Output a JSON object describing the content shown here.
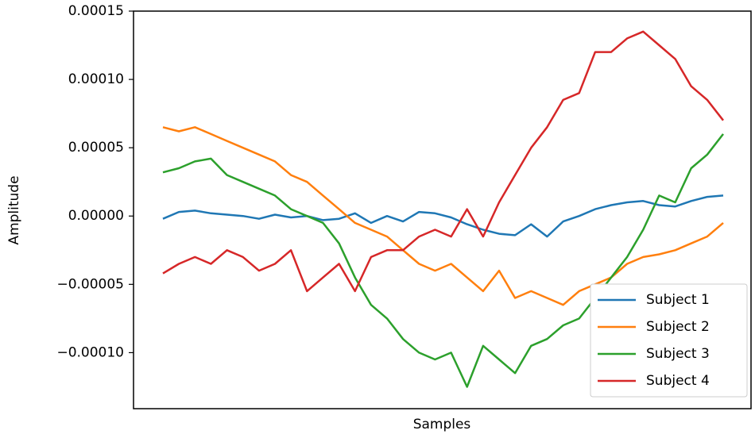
{
  "chart_data": {
    "type": "line",
    "ylabel": "Amplitude",
    "xlabel": "Samples",
    "ylim": [
      -0.000141,
      0.00015
    ],
    "yticks": [
      {
        "value": -0.0001,
        "label": "−0.00010"
      },
      {
        "value": -5e-05,
        "label": "−0.00005"
      },
      {
        "value": 0,
        "label": "0.00000"
      },
      5e-05,
      {
        "value": 0.0001,
        "label": "0.00010"
      },
      0.00015
    ],
    "legend": "lower right",
    "series": [
      {
        "name": "Subject 1",
        "color": "#1f77b4",
        "values": [
          -2e-06,
          3e-06,
          4e-06,
          2e-06,
          1e-06,
          0.0,
          -2e-06,
          1e-06,
          -1e-06,
          0.0,
          -3e-06,
          -2e-06,
          2e-06,
          -5e-06,
          0.0,
          -4e-06,
          3e-06,
          2e-06,
          -1e-06,
          -6e-06,
          -1e-05,
          -1.3e-05,
          -1.4e-05,
          -6e-06,
          -1.5e-05,
          -4e-06,
          0.0,
          5e-06,
          8e-06,
          1e-05,
          1.1e-05,
          8e-06,
          7e-06,
          1.1e-05,
          1.4e-05,
          1.5e-05
        ]
      },
      {
        "name": "Subject 2",
        "color": "#ff7f0e",
        "values": [
          6.5e-05,
          6.2e-05,
          6.5e-05,
          6e-05,
          5.5e-05,
          5e-05,
          4.5e-05,
          4e-05,
          3e-05,
          2.5e-05,
          1.5e-05,
          5e-06,
          -5e-06,
          -1e-05,
          -1.5e-05,
          -2.5e-05,
          -3.5e-05,
          -4e-05,
          -3.5e-05,
          -4.5e-05,
          -5.5e-05,
          -4e-05,
          -6e-05,
          -5.5e-05,
          -6e-05,
          -6.5e-05,
          -5.5e-05,
          -5e-05,
          -4.5e-05,
          -3.5e-05,
          -3e-05,
          -2.8e-05,
          -2.5e-05,
          -2e-05,
          -1.5e-05,
          -5e-06
        ]
      },
      {
        "name": "Subject 3",
        "color": "#2ca02c",
        "values": [
          3.2e-05,
          3.5e-05,
          4e-05,
          4.2e-05,
          3e-05,
          2.5e-05,
          2e-05,
          1.5e-05,
          5e-06,
          0.0,
          -5e-06,
          -2e-05,
          -4.5e-05,
          -6.5e-05,
          -7.5e-05,
          -9e-05,
          -0.0001,
          -0.000105,
          -0.0001,
          -0.000125,
          -9.5e-05,
          -0.000105,
          -0.000115,
          -9.5e-05,
          -9e-05,
          -8e-05,
          -7.5e-05,
          -6e-05,
          -4.5e-05,
          -3e-05,
          -1e-05,
          1.5e-05,
          1e-05,
          3.5e-05,
          4.5e-05,
          6e-05
        ]
      },
      {
        "name": "Subject 4",
        "color": "#d62728",
        "values": [
          -4.2e-05,
          -3.5e-05,
          -3e-05,
          -3.5e-05,
          -2.5e-05,
          -3e-05,
          -4e-05,
          -3.5e-05,
          -2.5e-05,
          -5.5e-05,
          -4.5e-05,
          -3.5e-05,
          -5.5e-05,
          -3e-05,
          -2.5e-05,
          -2.5e-05,
          -1.5e-05,
          -1e-05,
          -1.5e-05,
          5e-06,
          -1.5e-05,
          1e-05,
          3e-05,
          5e-05,
          6.5e-05,
          8.5e-05,
          9e-05,
          0.00012,
          0.00012,
          0.00013,
          0.000135,
          0.000125,
          0.000115,
          9.5e-05,
          8.5e-05,
          7e-05
        ]
      }
    ]
  }
}
